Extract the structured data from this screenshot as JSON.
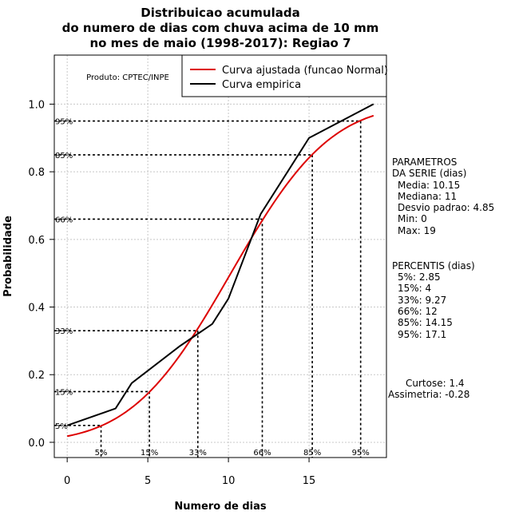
{
  "chart_data": {
    "type": "line",
    "title": [
      "Distribuicao acumulada",
      "do numero de dias com chuva acima de 10 mm",
      "no mes de maio (1998-2017): Regiao 7"
    ],
    "xlabel": "Numero de dias",
    "ylabel": "Probabilidade",
    "xlim": [
      -0.8,
      19.8
    ],
    "ylim": [
      -0.045,
      1.145
    ],
    "x_ticks": [
      0,
      5,
      10,
      15
    ],
    "y_ticks": [
      0.0,
      0.2,
      0.4,
      0.6,
      0.8,
      1.0
    ],
    "x_tick_labels": [
      "0",
      "5",
      "10",
      "15"
    ],
    "y_tick_labels": [
      "0.0",
      "0.2",
      "0.4",
      "0.6",
      "0.8",
      "1.0"
    ],
    "grid": true,
    "product_label": "Produto: CPTEC/INPE",
    "legend": {
      "position": "top-right",
      "entries": [
        {
          "label": "Curva ajustada (funcao Normal)",
          "color": "#dd0000"
        },
        {
          "label": "Curva empirica",
          "color": "#000000"
        }
      ]
    },
    "series": [
      {
        "name": "Curva ajustada (funcao Normal)",
        "color": "#dd0000",
        "kind": "normal_cdf",
        "mean": 10.15,
        "sd": 4.85,
        "x_from": 0,
        "x_to": 19
      },
      {
        "name": "Curva empirica",
        "color": "#000000",
        "x": [
          0,
          3,
          4,
          7,
          9,
          10,
          12,
          15,
          19
        ],
        "y": [
          0.05,
          0.1,
          0.175,
          0.285,
          0.35,
          0.425,
          0.675,
          0.9,
          1.0
        ]
      }
    ],
    "percentile_markers": [
      {
        "label": "5%",
        "p": 0.05,
        "x": 2.1
      },
      {
        "label": "15%",
        "p": 0.15,
        "x": 5.1
      },
      {
        "label": "33%",
        "p": 0.33,
        "x": 8.1
      },
      {
        "label": "66%",
        "p": 0.66,
        "x": 12.1
      },
      {
        "label": "85%",
        "p": 0.85,
        "x": 15.2
      },
      {
        "label": "95%",
        "p": 0.95,
        "x": 18.2
      }
    ],
    "side_panel": {
      "parametros_title": [
        "PARAMETROS",
        "DA SERIE (dias)"
      ],
      "parametros": [
        "Media: 10.15",
        "Mediana: 11",
        "Desvio padrao: 4.85",
        "Min: 0",
        "Max: 19"
      ],
      "percentis_title": "PERCENTIS (dias)",
      "percentis": [
        "5%: 2.85",
        "15%: 4",
        "33%: 9.27",
        "66%: 12",
        "85%: 14.15",
        "95%: 17.1"
      ],
      "curtose": "Curtose: 1.4",
      "assimetria": "Assimetria: -0.28"
    }
  }
}
